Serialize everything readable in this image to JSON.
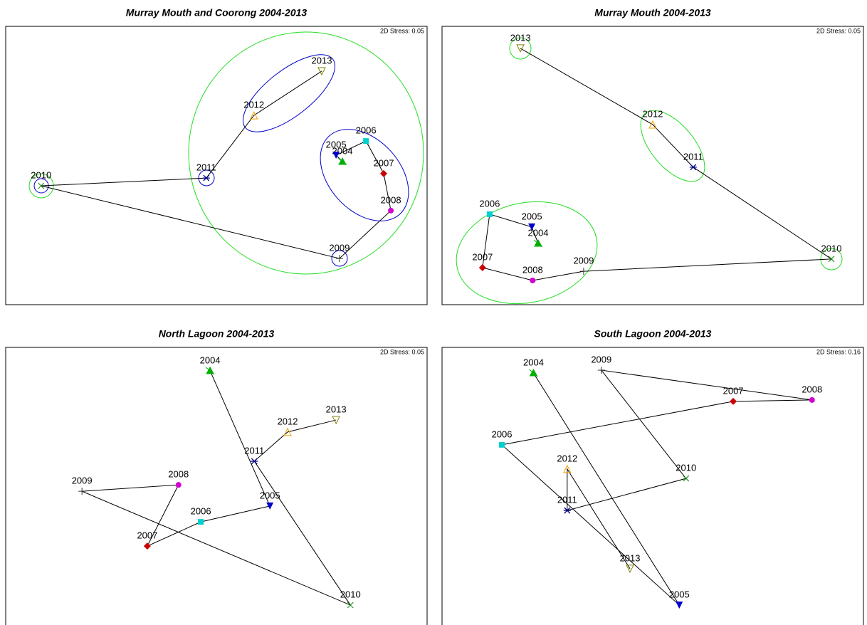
{
  "chart_data": [
    {
      "type": "scatter",
      "title": "Murray Mouth and Coorong 2004-2013",
      "annotation": "2D Stress: 0.05",
      "labels": [
        "2004",
        "2005",
        "2006",
        "2007",
        "2008",
        "2009",
        "2010",
        "2011",
        "2012",
        "2013"
      ],
      "x": [
        79.9,
        78.4,
        85.5,
        89.7,
        91.4,
        79.2,
        8.4,
        47.6,
        58.9,
        75.0
      ],
      "values": [
        51.4,
        53.7,
        58.8,
        47.1,
        33.8,
        16.6,
        42.7,
        45.5,
        68.0,
        83.9
      ],
      "xlim": [
        0,
        100
      ],
      "ylim": [
        0,
        100
      ],
      "connect": true,
      "marker_shapes": [
        "star",
        "down-triangle",
        "square",
        "diamond",
        "circle",
        "plus",
        "cross",
        "asterisk",
        "open-triangle",
        "open-down-triangle"
      ],
      "marker_colors": [
        "#00b000",
        "#0000cc",
        "#00d0d0",
        "#cc0000",
        "#d000d0",
        "#333333",
        "#008000",
        "#000080",
        "#f0a000",
        "#808000"
      ]
    },
    {
      "type": "scatter",
      "title": "Murray Mouth 2004-2013",
      "annotation": "2D Stress: 0.05",
      "labels": [
        "2004",
        "2005",
        "2006",
        "2007",
        "2008",
        "2009",
        "2010",
        "2011",
        "2012",
        "2013"
      ],
      "x": [
        22.8,
        21.3,
        11.3,
        9.6,
        21.5,
        33.6,
        92.4,
        59.6,
        50.0,
        18.6
      ],
      "values": [
        22.0,
        27.9,
        32.5,
        13.3,
        8.7,
        12.0,
        16.4,
        49.4,
        64.7,
        92.1
      ],
      "xlim": [
        0,
        100
      ],
      "ylim": [
        0,
        100
      ],
      "connect": true,
      "marker_shapes": [
        "star",
        "down-triangle",
        "square",
        "diamond",
        "circle",
        "plus",
        "cross",
        "asterisk",
        "open-triangle",
        "open-down-triangle"
      ],
      "marker_colors": [
        "#00b000",
        "#0000cc",
        "#00d0d0",
        "#cc0000",
        "#d000d0",
        "#333333",
        "#008000",
        "#000080",
        "#f0a000",
        "#808000"
      ]
    },
    {
      "type": "scatter",
      "title": "North Lagoon 2004-2013",
      "annotation": "2D Stress: 0.05",
      "labels": [
        "2004",
        "2005",
        "2006",
        "2007",
        "2008",
        "2009",
        "2010",
        "2011",
        "2012",
        "2013"
      ],
      "x": [
        48.5,
        62.7,
        46.3,
        33.6,
        41.0,
        18.1,
        81.8,
        59.0,
        66.9,
        78.4
      ],
      "values": [
        91.6,
        43.0,
        37.3,
        28.6,
        50.6,
        48.3,
        7.4,
        59.1,
        69.6,
        73.9
      ],
      "xlim": [
        0,
        100
      ],
      "ylim": [
        0,
        100
      ],
      "connect": true,
      "marker_shapes": [
        "star",
        "down-triangle",
        "square",
        "diamond",
        "circle",
        "plus",
        "cross",
        "asterisk",
        "open-triangle",
        "open-down-triangle"
      ],
      "marker_colors": [
        "#00b000",
        "#0000cc",
        "#00d0d0",
        "#cc0000",
        "#d000d0",
        "#333333",
        "#008000",
        "#000080",
        "#f0a000",
        "#808000"
      ]
    },
    {
      "type": "scatter",
      "title": "South Lagoon 2004-2013",
      "annotation": "2D Stress: 0.16",
      "labels": [
        "2004",
        "2005",
        "2006",
        "2007",
        "2008",
        "2009",
        "2010",
        "2011",
        "2012",
        "2013"
      ],
      "x": [
        21.7,
        56.3,
        14.2,
        69.1,
        87.8,
        37.8,
        57.9,
        29.7,
        29.7,
        44.6
      ],
      "values": [
        90.8,
        7.4,
        65.0,
        80.6,
        81.1,
        91.8,
        52.9,
        41.4,
        56.3,
        20.5
      ],
      "xlim": [
        0,
        100
      ],
      "ylim": [
        0,
        100
      ],
      "connect": true,
      "marker_shapes": [
        "star",
        "down-triangle",
        "square",
        "diamond",
        "circle",
        "plus",
        "cross",
        "asterisk",
        "open-triangle",
        "open-down-triangle"
      ],
      "marker_colors": [
        "#00b000",
        "#0000cc",
        "#00d0d0",
        "#cc0000",
        "#d000d0",
        "#333333",
        "#008000",
        "#000080",
        "#f0a000",
        "#808000"
      ]
    }
  ]
}
